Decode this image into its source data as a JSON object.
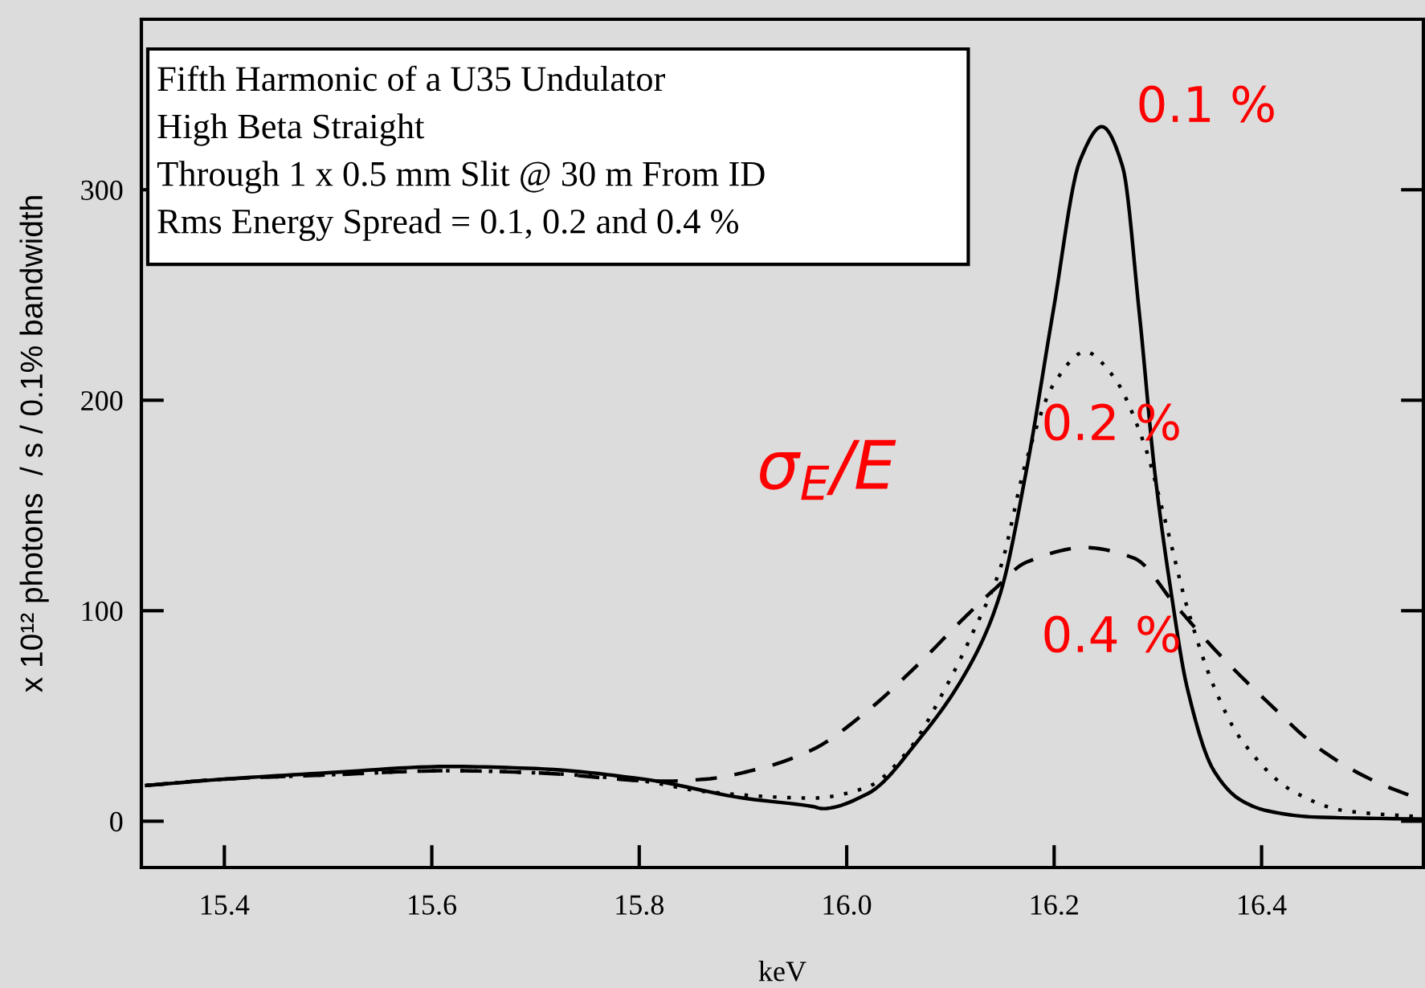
{
  "chart_data": {
    "type": "line",
    "xlabel": "keV",
    "ylabel": "x 10¹² photons  / s / 0.1% bandwidth",
    "xlim": [
      15.32,
      16.556
    ],
    "ylim": [
      -22,
      381
    ],
    "xticks": [
      15.4,
      15.6,
      15.8,
      {
        "value": 16.0,
        "label": "16.0"
      },
      16.2,
      16.4
    ],
    "yticks": [
      0,
      100,
      200,
      300
    ],
    "series": [
      {
        "color": "#000000",
        "line_style": "solid",
        "x": [
          15.325,
          15.4,
          15.5,
          15.617,
          15.7,
          15.804,
          15.9,
          15.967,
          15.977,
          16.02,
          16.07,
          16.122,
          16.148,
          16.173,
          16.199,
          16.225,
          16.246,
          16.266,
          16.282,
          16.297,
          16.313,
          16.328,
          16.354,
          16.38,
          16.405,
          16.45,
          16.555
        ],
        "values": [
          17,
          20,
          23,
          26,
          25,
          20,
          11,
          7,
          6,
          13,
          39,
          77,
          108,
          166,
          242,
          314,
          330,
          311,
          242,
          166,
          108,
          64,
          24,
          10,
          5,
          2,
          1
        ]
      },
      {
        "color": "#000000",
        "line_style": "dotted",
        "x": [
          15.325,
          15.4,
          15.5,
          15.617,
          15.7,
          15.804,
          15.864,
          15.967,
          16.019,
          16.06,
          16.096,
          16.122,
          16.148,
          16.173,
          16.2,
          16.23,
          16.256,
          16.287,
          16.308,
          16.328,
          16.354,
          16.38,
          16.431,
          16.48,
          16.555
        ],
        "values": [
          17,
          20,
          22,
          24,
          23,
          19,
          14,
          11,
          16,
          34,
          64,
          90,
          120,
          171,
          208,
          223,
          212,
          179,
          141,
          102,
          64,
          39,
          14,
          5,
          2
        ]
      },
      {
        "color": "#000000",
        "line_style": "dashed",
        "x": [
          15.325,
          15.4,
          15.5,
          15.617,
          15.7,
          15.823,
          15.864,
          15.916,
          15.967,
          16.019,
          16.07,
          16.11,
          16.142,
          16.173,
          16.23,
          16.277,
          16.318,
          16.354,
          16.405,
          16.457,
          16.509,
          16.555
        ],
        "values": [
          17,
          20,
          22,
          24,
          23,
          19,
          20,
          25,
          34,
          52,
          75,
          95,
          110,
          123,
          130,
          125,
          102,
          82,
          57,
          34,
          19,
          10
        ]
      }
    ],
    "annotations": [
      "Fifth Harmonic of a U35 Undulator",
      "High Beta Straight",
      "Through 1 x 0.5 mm Slit @ 30 m From ID",
      "Rms Energy Spread = 0.1, 0.2 and 0.4 %",
      "σ$_{E}$/E",
      "0.1 %",
      "0.2 %",
      "0.4 %"
    ]
  }
}
